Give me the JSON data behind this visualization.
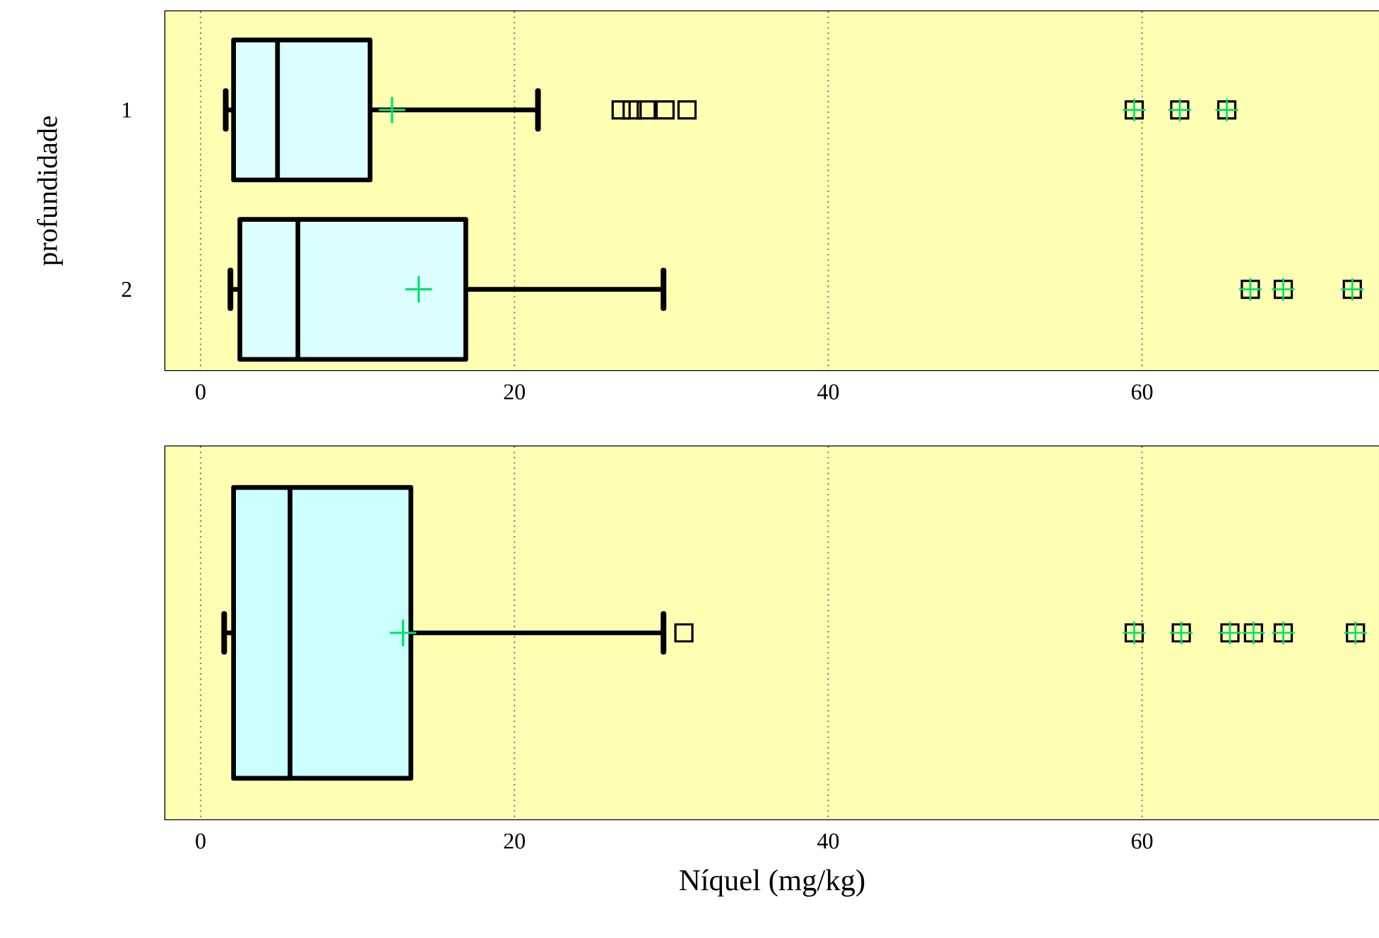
{
  "chart_data": [
    {
      "type": "box",
      "ylabel": "profundidade",
      "categories": [
        "1",
        "2"
      ],
      "orientation": "horizontal",
      "xlim": [
        -2.25,
        75.1
      ],
      "xticks": [
        0,
        20,
        40,
        60
      ],
      "grid": "x",
      "series": [
        {
          "color": "#ddffff",
          "boxes": [
            {
              "low": 1.6,
              "q1": 2.1,
              "median": 4.9,
              "q3": 10.8,
              "high": 21.5,
              "mean": 12.2,
              "outliers": [
                26.8,
                27.5,
                28.4,
                29.6,
                31.0,
                59.5,
                62.4,
                65.4
              ]
            },
            {
              "low": 1.9,
              "q1": 2.5,
              "median": 6.2,
              "q3": 16.9,
              "high": 29.5,
              "mean": 13.9,
              "outliers": [
                66.9,
                69.0,
                73.4
              ]
            }
          ]
        }
      ]
    },
    {
      "type": "box",
      "xlabel": "Níquel (mg/kg)",
      "categories": [
        null
      ],
      "orientation": "horizontal",
      "xlim": [
        -2.25,
        75.1
      ],
      "xticks": [
        0,
        20,
        40,
        60
      ],
      "grid": "x",
      "tick_labels": "x",
      "series": [
        {
          "color": "#ccffff",
          "boxes": [
            {
              "low": 1.5,
              "q1": 2.1,
              "median": 5.7,
              "q3": 13.4,
              "high": 29.5,
              "mean": 12.9,
              "outliers": [
                30.8,
                59.5,
                62.5,
                65.6,
                67.1,
                69.0,
                73.6
              ]
            }
          ]
        }
      ]
    }
  ]
}
